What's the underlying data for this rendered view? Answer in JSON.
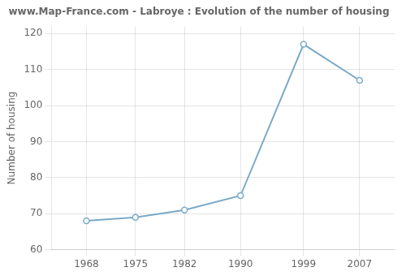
{
  "chart_data": {
    "type": "line",
    "title": "www.Map-France.com - Labroye : Evolution of the number of housing",
    "y_label": "Number of housing",
    "x": [
      1968,
      1975,
      1982,
      1990,
      1999,
      2007
    ],
    "values": [
      68,
      69,
      71,
      75,
      117,
      107
    ],
    "xlim": [
      1963,
      2012
    ],
    "xticks": [
      1968,
      1975,
      1982,
      1990,
      1999,
      2007
    ],
    "ylim": [
      60,
      122
    ],
    "yticks": [
      60,
      70,
      80,
      90,
      100,
      110,
      120
    ],
    "color": "#7aaac8",
    "marker": "circle",
    "grid": true
  }
}
